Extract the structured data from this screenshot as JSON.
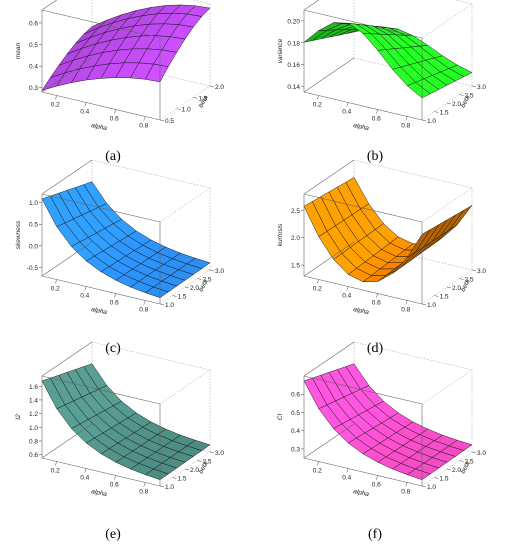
{
  "chart_data": [
    {
      "type": "surface",
      "panel": "(a)",
      "xlabel": "alpha",
      "ylabel": "beta",
      "zlabel": "mean",
      "x_ticks": [
        "0.2",
        "0.4",
        "0.6",
        "0.8"
      ],
      "y_ticks": [
        "0.5",
        "1.0",
        "1.5",
        "2.0"
      ],
      "z_ticks": [
        "0.3",
        "0.4",
        "0.5",
        "0.6"
      ],
      "xlim": [
        0.1,
        0.9
      ],
      "ylim": [
        0.5,
        2.0
      ],
      "zlim": [
        0.28,
        0.66
      ],
      "color": "#c34cf5",
      "grid_x": [
        0.1,
        0.2,
        0.3,
        0.4,
        0.5,
        0.6,
        0.7,
        0.8,
        0.9
      ],
      "grid_y": [
        0.5,
        0.75,
        1.0,
        1.25,
        1.5,
        1.75,
        2.0
      ],
      "corners": [
        0.28,
        0.64,
        0.45,
        0.65
      ],
      "shape": "saturating_rise"
    },
    {
      "type": "surface",
      "panel": "(b)",
      "xlabel": "alpha",
      "ylabel": "beta",
      "zlabel": "variance",
      "x_ticks": [
        "0.2",
        "0.4",
        "0.6",
        "0.8"
      ],
      "y_ticks": [
        "1.0",
        "1.5",
        "2.0",
        "2.5",
        "3.0"
      ],
      "z_ticks": [
        "0.14",
        "0.16",
        "0.18",
        "0.20"
      ],
      "xlim": [
        0.1,
        0.9
      ],
      "ylim": [
        1.0,
        3.0
      ],
      "zlim": [
        0.135,
        0.21
      ],
      "color": "#22ee22",
      "grid_x": [
        0.1,
        0.2,
        0.3,
        0.4,
        0.5,
        0.6,
        0.7,
        0.8,
        0.9
      ],
      "grid_y": [
        1.0,
        1.33,
        1.67,
        2.0,
        2.33,
        2.67,
        3.0
      ],
      "shape": "ridge"
    },
    {
      "type": "surface",
      "panel": "(c)",
      "xlabel": "alpha",
      "ylabel": "beta",
      "zlabel": "skewness",
      "x_ticks": [
        "0.2",
        "0.4",
        "0.6",
        "0.8"
      ],
      "y_ticks": [
        "1.0",
        "1.5",
        "2.0",
        "2.5",
        "3.0"
      ],
      "z_ticks": [
        "-0.5",
        "0.0",
        "0.5",
        "1.0"
      ],
      "xlim": [
        0.1,
        0.9
      ],
      "ylim": [
        1.0,
        3.0
      ],
      "zlim": [
        -0.7,
        1.2
      ],
      "color": "#2b8cf0",
      "grid_x": [
        0.1,
        0.2,
        0.3,
        0.4,
        0.5,
        0.6,
        0.7,
        0.8,
        0.9
      ],
      "grid_y": [
        1.0,
        1.33,
        1.67,
        2.0,
        2.33,
        2.67,
        3.0
      ],
      "shape": "decay"
    },
    {
      "type": "surface",
      "panel": "(d)",
      "xlabel": "alpha",
      "ylabel": "beta",
      "zlabel": "kurtosis",
      "x_ticks": [
        "0.2",
        "0.4",
        "0.6",
        "0.8"
      ],
      "y_ticks": [
        "1.0",
        "1.5",
        "2.0",
        "2.5",
        "3.0"
      ],
      "z_ticks": [
        "1.5",
        "2.0",
        "2.5"
      ],
      "xlim": [
        0.1,
        0.9
      ],
      "ylim": [
        1.0,
        3.0
      ],
      "zlim": [
        1.3,
        2.8
      ],
      "color": "#ff8c00",
      "grid_x": [
        0.1,
        0.2,
        0.3,
        0.4,
        0.5,
        0.6,
        0.7,
        0.8,
        0.9
      ],
      "grid_y": [
        1.0,
        1.33,
        1.67,
        2.0,
        2.33,
        2.67,
        3.0
      ],
      "shape": "valley"
    },
    {
      "type": "surface",
      "panel": "(e)",
      "xlabel": "alpha",
      "ylabel": "beta",
      "zlabel": "I2",
      "x_ticks": [
        "0.2",
        "0.4",
        "0.6",
        "0.8"
      ],
      "y_ticks": [
        "1.0",
        "1.5",
        "2.0",
        "2.5",
        "3.0"
      ],
      "z_ticks": [
        "0.6",
        "0.8",
        "1.0",
        "1.2",
        "1.4",
        "1.6"
      ],
      "xlim": [
        0.1,
        0.9
      ],
      "ylim": [
        1.0,
        3.0
      ],
      "zlim": [
        0.55,
        1.75
      ],
      "color": "#4d8a80",
      "grid_x": [
        0.1,
        0.2,
        0.3,
        0.4,
        0.5,
        0.6,
        0.7,
        0.8,
        0.9
      ],
      "grid_y": [
        1.0,
        1.33,
        1.67,
        2.0,
        2.33,
        2.67,
        3.0
      ],
      "shape": "decay"
    },
    {
      "type": "surface",
      "panel": "(f)",
      "xlabel": "alpha",
      "ylabel": "beta",
      "zlabel": "CI",
      "x_ticks": [
        "0.2",
        "0.4",
        "0.6",
        "0.8"
      ],
      "y_ticks": [
        "1.0",
        "1.5",
        "2.0",
        "2.5",
        "3.0"
      ],
      "z_ticks": [
        "0.3",
        "0.4",
        "0.5",
        "0.6"
      ],
      "xlim": [
        0.1,
        0.9
      ],
      "ylim": [
        1.0,
        3.0
      ],
      "zlim": [
        0.25,
        0.7
      ],
      "color": "#f04bc3",
      "grid_x": [
        0.1,
        0.2,
        0.3,
        0.4,
        0.5,
        0.6,
        0.7,
        0.8,
        0.9
      ],
      "grid_y": [
        1.0,
        1.33,
        1.67,
        2.0,
        2.33,
        2.67,
        3.0
      ],
      "shape": "decay"
    }
  ]
}
